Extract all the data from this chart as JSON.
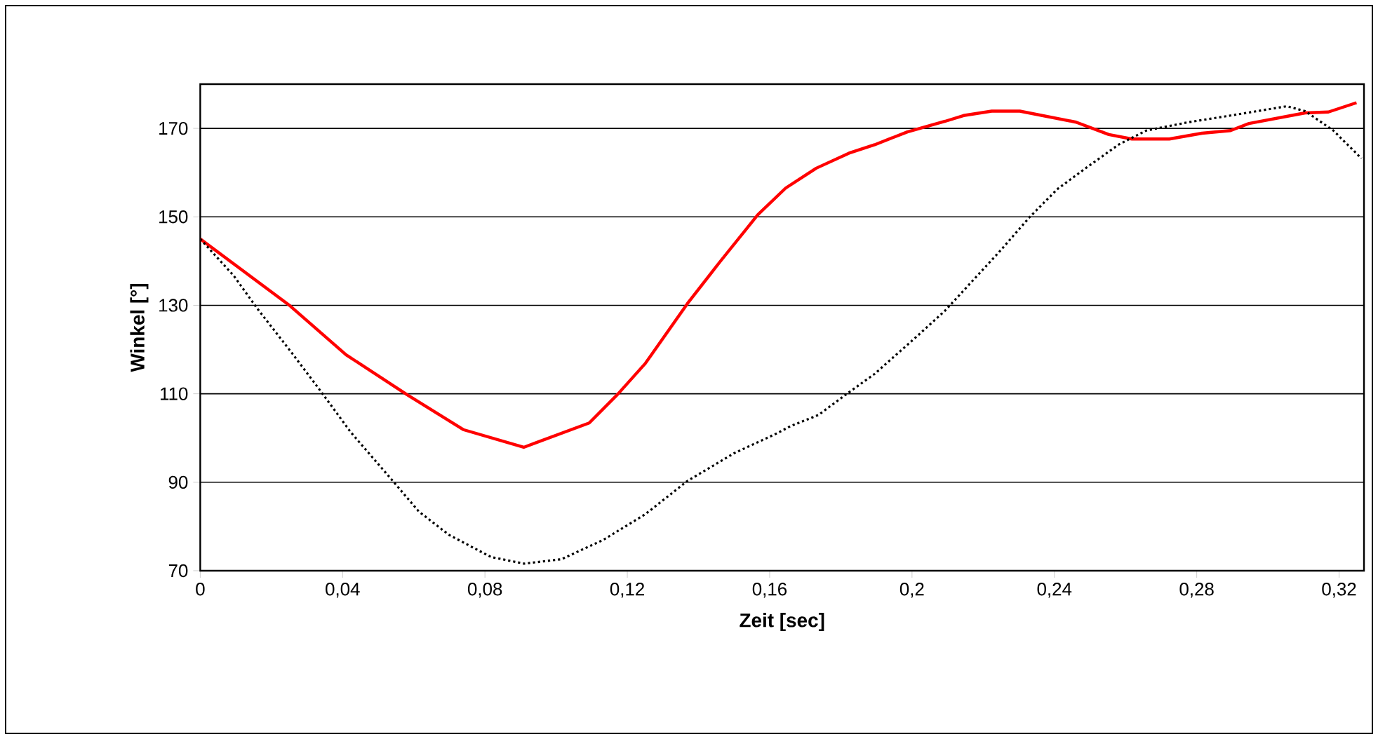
{
  "chart_data": {
    "type": "line",
    "xlabel": "Zeit [sec]",
    "ylabel": "Winkel [°]",
    "xlim": [
      0,
      0.327
    ],
    "ylim": [
      70,
      180
    ],
    "xticks": [
      {
        "value": 0,
        "label": "0"
      },
      {
        "value": 0.04,
        "label": "0,04"
      },
      {
        "value": 0.08,
        "label": "0,08"
      },
      {
        "value": 0.12,
        "label": "0,12"
      },
      {
        "value": 0.16,
        "label": "0,16"
      },
      {
        "value": 0.2,
        "label": "0,2"
      },
      {
        "value": 0.24,
        "label": "0,24"
      },
      {
        "value": 0.28,
        "label": "0,28"
      },
      {
        "value": 0.32,
        "label": "0,32"
      }
    ],
    "yticks": [
      70,
      90,
      110,
      130,
      150,
      170
    ],
    "grid": "y",
    "series": [
      {
        "color": "#ff0000",
        "line_style": "solid",
        "x": [
          0,
          0.0252,
          0.041,
          0.0581,
          0.0739,
          0.0909,
          0.1093,
          0.1172,
          0.1251,
          0.1369,
          0.1461,
          0.1567,
          0.1645,
          0.1731,
          0.1823,
          0.1895,
          0.1987,
          0.2093,
          0.2145,
          0.2224,
          0.2303,
          0.2461,
          0.2553,
          0.2618,
          0.2723,
          0.2815,
          0.2895,
          0.2947,
          0.3105,
          0.317,
          0.3249
        ],
        "values": [
          145,
          129.9,
          118.8,
          109.8,
          101.9,
          97.9,
          103.4,
          109.8,
          116.9,
          130.4,
          139.9,
          150.5,
          156.5,
          161,
          164.4,
          166.3,
          169.2,
          171.6,
          172.9,
          173.9,
          173.9,
          171.4,
          168.6,
          167.6,
          167.6,
          168.9,
          169.5,
          171.1,
          173.5,
          173.7,
          175.8
        ]
      },
      {
        "color": "#000000",
        "line_style": "dotted",
        "x": [
          0,
          0.0094,
          0.016,
          0.0252,
          0.0331,
          0.0423,
          0.0541,
          0.0614,
          0.0699,
          0.0817,
          0.091,
          0.1015,
          0.1133,
          0.1251,
          0.1369,
          0.1501,
          0.1619,
          0.1659,
          0.1737,
          0.1817,
          0.1895,
          0.2014,
          0.2093,
          0.2172,
          0.2251,
          0.233,
          0.2409,
          0.2488,
          0.258,
          0.2658,
          0.2777,
          0.2895,
          0.3053,
          0.3105,
          0.3184,
          0.3263
        ],
        "values": [
          145,
          136.7,
          129.3,
          119.8,
          111.4,
          101.3,
          90.3,
          83.4,
          78.1,
          73.1,
          71.6,
          72.6,
          77,
          82.8,
          90.3,
          96.6,
          101,
          102.7,
          105.2,
          110,
          114.5,
          123,
          128.8,
          135.7,
          142.6,
          149.9,
          156.3,
          161,
          166.3,
          169.5,
          171.4,
          172.9,
          175,
          173.9,
          169.5,
          163.2
        ]
      }
    ]
  }
}
